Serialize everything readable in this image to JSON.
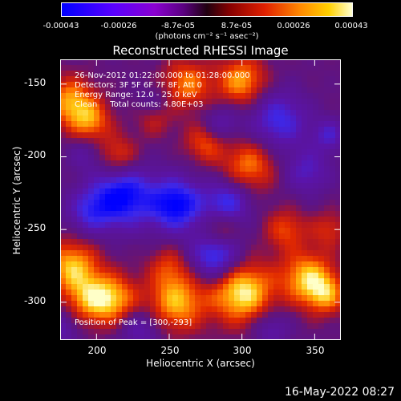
{
  "colorbar": {
    "ticks": [
      "-0.00043",
      "-0.00026",
      "-8.7e-05",
      "8.7e-05",
      "0.00026",
      "0.00043"
    ],
    "unit": "(photons cm⁻² s⁻¹ asec⁻²)"
  },
  "chart_data": {
    "type": "heatmap",
    "title": "Reconstructed RHESSI Image",
    "xlabel": "Heliocentric X (arcsec)",
    "ylabel": "Heliocentric Y (arcsec)",
    "xlim": [
      175,
      368
    ],
    "ylim": [
      -326,
      -133
    ],
    "xticks": [
      200,
      250,
      300,
      350
    ],
    "yticks": [
      -150,
      -200,
      -250,
      -300
    ],
    "colorbar_range": [
      -0.00043,
      0.00043
    ],
    "annotations": {
      "time_range": "26-Nov-2012 01:22:00.000 to 01:28:00.000",
      "detectors": "Detectors: 3F 5F 6F 7F 8F, Att 0",
      "energy": "Energy Range: 12.0 - 25.0 keV",
      "clean": "Clean     Total counts: 4.80E+03",
      "peak": "Position of Peak = [300,-293]"
    }
  },
  "footer": {
    "timestamp": "16-May-2022 08:27"
  }
}
